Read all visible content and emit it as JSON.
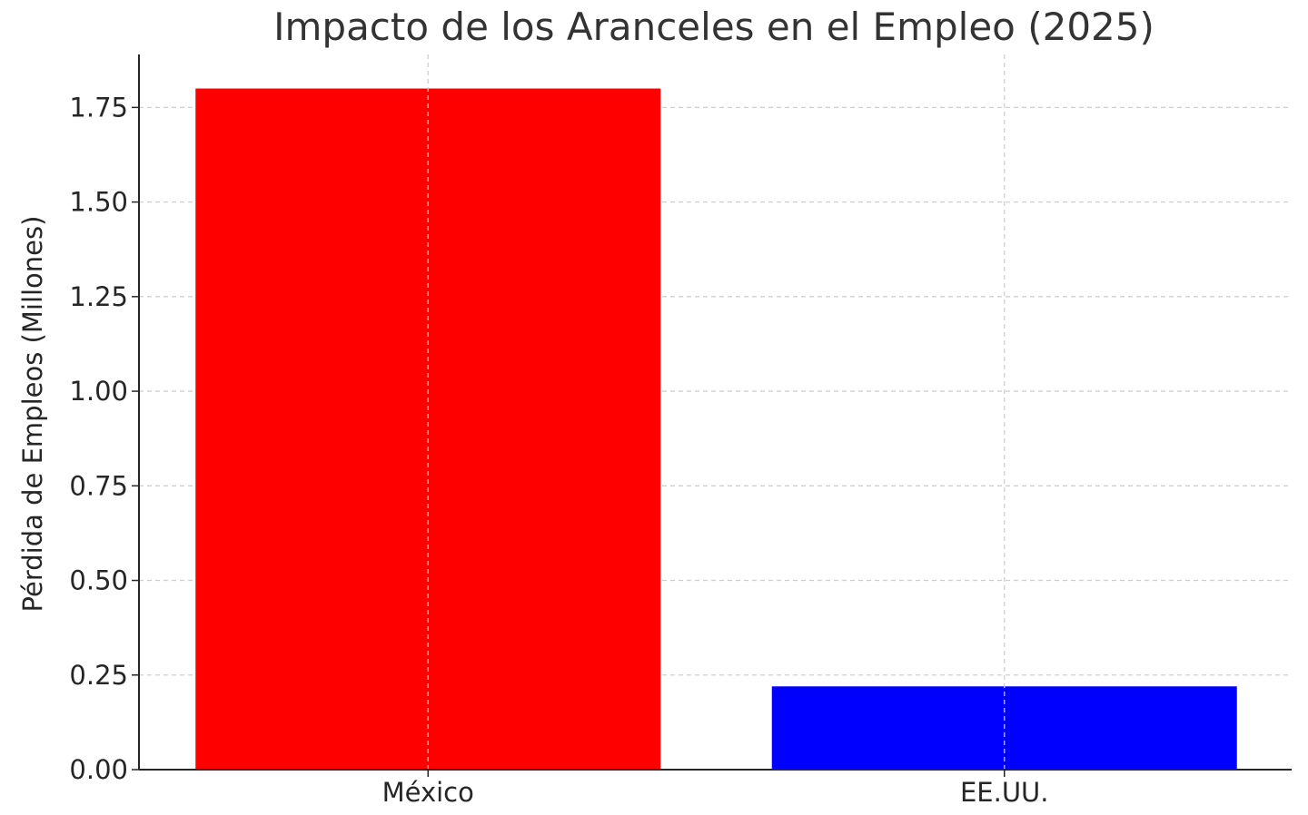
{
  "chart_data": {
    "type": "bar",
    "title": "Impacto de los Aranceles en el Empleo (2025)",
    "xlabel": "",
    "ylabel": "Pérdida de Empleos (Millones)",
    "categories": [
      "México",
      "EE.UU."
    ],
    "values": [
      1.8,
      0.22
    ],
    "colors": [
      "#ff0000",
      "#0000ff"
    ],
    "ylim": [
      0,
      1.89
    ],
    "yticks": [
      "0.00",
      "0.25",
      "0.50",
      "0.75",
      "1.00",
      "1.25",
      "1.50",
      "1.75"
    ],
    "grid": true
  }
}
